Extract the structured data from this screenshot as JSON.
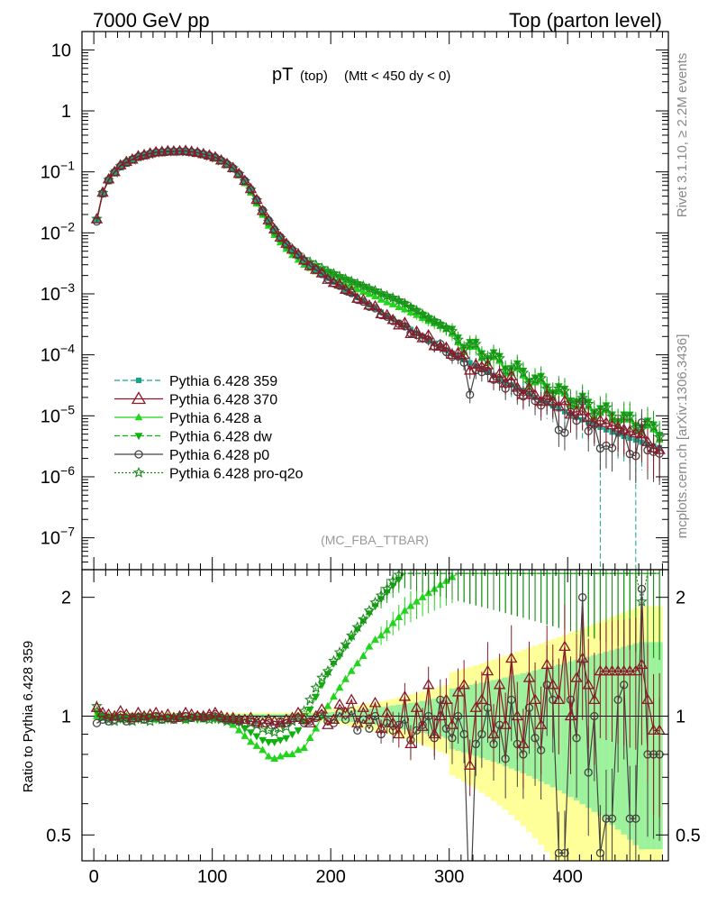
{
  "header": {
    "left": "7000 GeV pp",
    "right": "Top (parton level)"
  },
  "plot_title": {
    "main": "pT",
    "sub1": "(top)",
    "sub2": "(Mtt < 450 dy < 0)"
  },
  "side_labels": {
    "rivet": "Rivet 3.1.10, ≥ 2.2M events",
    "mcplots": "mcplots.cern.ch [arXiv:1306.3436]"
  },
  "analysis_tag": "(MC_FBA_TTBAR)",
  "ratio_ylabel": "Ratio to Pythia 6.428 359",
  "colors": {
    "p359": "#16a58a",
    "p370": "#8b1a2a",
    "pa": "#22d41c",
    "pdw": "#10b010",
    "pp0": "#444444",
    "ppro": "#1f8a1f",
    "band_yellow": "#ffff99",
    "band_green": "#9cf29c"
  },
  "chart_data": [
    {
      "type": "line",
      "panel": "main",
      "title": "pT (top) (Mtt < 450 dy < 0)",
      "yscale": "log",
      "xlim": [
        -10,
        485
      ],
      "ylim": [
        3e-08,
        20
      ],
      "y_ticks": [
        {
          "v": 10,
          "base": "10",
          "exp": ""
        },
        {
          "v": 1,
          "base": "1",
          "exp": ""
        },
        {
          "v": 0.1,
          "base": "10",
          "exp": "−1"
        },
        {
          "v": 0.01,
          "base": "10",
          "exp": "−2"
        },
        {
          "v": 0.001,
          "base": "10",
          "exp": "−3"
        },
        {
          "v": 0.0001,
          "base": "10",
          "exp": "−4"
        },
        {
          "v": 1e-05,
          "base": "10",
          "exp": "−5"
        },
        {
          "v": 1e-06,
          "base": "10",
          "exp": "−6"
        },
        {
          "v": 1e-07,
          "base": "10",
          "exp": "−7"
        }
      ],
      "legend_position": "lower-left",
      "series": [
        {
          "key": "p359",
          "name": "Pythia 6.428 359",
          "marker": "square",
          "dash": "6,3",
          "factor": 1.0
        },
        {
          "key": "p370",
          "name": "Pythia 6.428 370",
          "marker": "triangle-open",
          "dash": "",
          "factor": 1.0
        },
        {
          "key": "pa",
          "name": "Pythia 6.428 a",
          "marker": "triangle",
          "dash": "",
          "factor": 1.9
        },
        {
          "key": "pdw",
          "name": "Pythia 6.428 dw",
          "marker": "triangle-down",
          "dash": "6,3",
          "factor": 2.3
        },
        {
          "key": "pp0",
          "name": "Pythia 6.428 p0",
          "marker": "circle-open",
          "dash": "",
          "factor": 0.95
        },
        {
          "key": "ppro",
          "name": "Pythia 6.428 pro-q2o",
          "marker": "star",
          "dash": "2,2",
          "factor": 2.1
        }
      ],
      "reference": {
        "x": [
          2.5,
          7.5,
          12.5,
          17.5,
          22.5,
          27.5,
          32.5,
          37.5,
          42.5,
          47.5,
          52.5,
          57.5,
          62.5,
          67.5,
          72.5,
          77.5,
          82.5,
          87.5,
          92.5,
          97.5,
          102.5,
          107.5,
          112.5,
          117.5,
          122.5,
          127.5,
          132.5,
          137.5,
          142.5,
          147.5,
          152.5,
          157.5,
          162.5,
          167.5,
          172.5,
          177.5,
          182.5,
          187.5,
          192.5,
          197.5,
          202.5,
          207.5,
          212.5,
          217.5,
          222.5,
          227.5,
          232.5,
          237.5,
          242.5,
          247.5,
          252.5,
          257.5,
          262.5,
          267.5,
          272.5,
          277.5,
          282.5,
          287.5,
          292.5,
          297.5,
          302.5,
          307.5,
          312.5,
          317.5,
          322.5,
          327.5,
          332.5,
          337.5,
          342.5,
          347.5,
          352.5,
          357.5,
          362.5,
          367.5,
          372.5,
          377.5,
          382.5,
          387.5,
          392.5,
          397.5,
          402.5,
          407.5,
          412.5,
          417.5,
          422.5,
          427.5,
          432.5,
          437.5,
          442.5,
          447.5,
          452.5,
          457.5,
          462.5,
          467.5,
          472.5,
          477.5
        ],
        "y": [
          0.016,
          0.045,
          0.075,
          0.1,
          0.125,
          0.145,
          0.162,
          0.178,
          0.19,
          0.2,
          0.208,
          0.214,
          0.218,
          0.22,
          0.22,
          0.218,
          0.213,
          0.206,
          0.197,
          0.185,
          0.171,
          0.155,
          0.137,
          0.117,
          0.095,
          0.073,
          0.053,
          0.036,
          0.024,
          0.0165,
          0.0118,
          0.0088,
          0.0068,
          0.0054,
          0.0044,
          0.0036,
          0.003,
          0.0025,
          0.0021,
          0.0018,
          0.00155,
          0.00133,
          0.00115,
          0.001,
          0.00087,
          0.00076,
          0.00066,
          0.00058,
          0.0005,
          0.00044,
          0.00039,
          0.00034,
          0.0003,
          0.00026,
          0.00023,
          0.0002,
          0.000175,
          0.000155,
          0.000137,
          0.00012,
          0.000106,
          9.4e-05,
          8.3e-05,
          7.4e-05,
          6.6e-05,
          5.8e-05,
          5.2e-05,
          4.6e-05,
          4.1e-05,
          3.6e-05,
          3.2e-05,
          2.9e-05,
          2.6e-05,
          2.3e-05,
          2e-05,
          1.8e-05,
          1.6e-05,
          1.45e-05,
          1.3e-05,
          1.17e-05,
          1.05e-05,
          9.5e-06,
          8.6e-06,
          7.8e-06,
          7.1e-06,
          6.5e-06,
          5.9e-06,
          5.4e-06,
          5e-06,
          4.6e-06,
          4.3e-06,
          4e-06,
          3.7e-06,
          3.4e-06,
          3.2e-06,
          3e-06
        ]
      }
    },
    {
      "type": "line",
      "panel": "ratio",
      "ylabel": "Ratio to Pythia 6.428 359",
      "xlabel": "",
      "yscale": "log",
      "xlim": [
        -10,
        485
      ],
      "ylim": [
        0.43,
        2.35
      ],
      "x_ticks": [
        0,
        100,
        200,
        300,
        400
      ],
      "y_ticks": [
        0.5,
        1,
        2
      ],
      "series_ratio": {
        "p370": [
          1.05,
          1.02,
          1.01,
          1.0,
          1.03,
          1.01,
          0.99,
          1.02,
          1.0,
          1.01,
          1.02,
          1.0,
          1.01,
          0.99,
          1.0,
          1.02,
          1.01,
          1.0,
          1.0,
          1.01,
          1.02,
          1.0,
          0.99,
          0.99,
          0.98,
          0.98,
          0.99,
          0.97,
          0.96,
          0.98,
          0.97,
          0.96,
          0.98,
          0.99,
          1.02,
          0.98,
          0.96,
          1.0,
          1.04,
          0.95,
          0.98,
          1.07,
          1.02,
          1.1,
          0.96,
          1.05,
          0.98,
          1.08,
          0.93,
          1.02,
          0.96,
          0.9,
          1.12,
          0.85,
          1.05,
          0.94,
          1.2,
          0.9,
          1.0,
          1.1,
          0.95,
          1.15,
          1.2,
          0.75,
          1.05,
          1.1,
          1.3,
          0.9,
          1.2,
          0.95,
          1.4,
          1.0,
          0.85,
          1.25,
          1.1,
          0.95,
          1.35,
          1.2,
          1.1,
          1.5,
          1.0,
          1.25,
          1.4,
          1.2,
          1.1,
          1.3,
          1.3,
          1.3,
          1.3,
          1.3,
          1.3,
          1.3,
          1.35,
          1.1,
          0.92,
          0.92
        ],
        "pp0": [
          0.96,
          0.98,
          0.97,
          0.98,
          0.99,
          0.97,
          0.98,
          0.99,
          0.98,
          0.99,
          1.0,
          0.98,
          0.99,
          0.98,
          0.99,
          1.0,
          0.99,
          1.0,
          0.99,
          1.0,
          1.01,
          0.99,
          0.98,
          0.98,
          0.97,
          0.98,
          0.97,
          0.96,
          0.98,
          0.97,
          0.95,
          0.97,
          0.96,
          0.98,
          0.99,
          0.96,
          0.97,
          0.99,
          1.01,
          0.97,
          0.96,
          1.02,
          0.98,
          1.03,
          0.92,
          0.98,
          0.93,
          1.0,
          0.9,
          0.96,
          0.92,
          0.95,
          0.98,
          0.87,
          0.92,
          0.95,
          1.0,
          0.88,
          1.1,
          0.93,
          0.88,
          1.0,
          0.9,
          0.3,
          0.85,
          0.9,
          1.05,
          0.85,
          0.95,
          0.78,
          1.1,
          0.85,
          0.8,
          1.05,
          0.88,
          0.82,
          1.2,
          1.1,
          0.45,
          0.45,
          1.1,
          0.88,
          2.0,
          0.72,
          1.0,
          0.45,
          0.55,
          0.55,
          1.1,
          1.2,
          0.55,
          0.55,
          2.1,
          0.8,
          0.8,
          0.8
        ],
        "pa": [
          1.0,
          0.99,
          1.0,
          0.99,
          0.98,
          1.0,
          0.99,
          0.98,
          1.0,
          0.99,
          0.98,
          0.99,
          0.98,
          1.0,
          0.99,
          0.98,
          1.0,
          0.99,
          0.98,
          0.99,
          0.99,
          0.98,
          0.97,
          0.95,
          0.92,
          0.89,
          0.86,
          0.84,
          0.82,
          0.79,
          0.78,
          0.79,
          0.8,
          0.8,
          0.82,
          0.83,
          0.88,
          0.93,
          1.0,
          1.06,
          1.12,
          1.18,
          1.24,
          1.3,
          1.36,
          1.42,
          1.5,
          1.56,
          1.6,
          1.65,
          1.72,
          1.78,
          1.85,
          1.9,
          1.95,
          2.0,
          2.05,
          2.1,
          2.15,
          2.2,
          2.25,
          2.3,
          2.3,
          2.3,
          2.3,
          2.3,
          2.3,
          2.3,
          2.3,
          2.3,
          2.3,
          2.3,
          2.3,
          2.3,
          2.3,
          2.3,
          2.3,
          2.3,
          2.3,
          2.3,
          2.3,
          2.3,
          2.3,
          2.3,
          2.3,
          2.3,
          2.3,
          2.3,
          2.3,
          2.3,
          2.3,
          2.3,
          2.3,
          2.3,
          2.3,
          2.3
        ],
        "pdw": [
          1.02,
          1.0,
          0.99,
          1.0,
          0.98,
          0.99,
          1.0,
          0.98,
          0.99,
          1.0,
          0.98,
          0.99,
          0.98,
          0.99,
          1.0,
          0.98,
          0.99,
          0.98,
          1.0,
          0.99,
          0.98,
          0.99,
          0.98,
          0.97,
          0.96,
          0.93,
          0.91,
          0.89,
          0.87,
          0.86,
          0.86,
          0.87,
          0.88,
          0.9,
          0.92,
          0.97,
          1.04,
          1.12,
          1.2,
          1.28,
          1.36,
          1.42,
          1.5,
          1.58,
          1.66,
          1.74,
          1.82,
          1.9,
          1.98,
          2.06,
          2.14,
          2.22,
          2.3,
          2.3,
          2.3,
          2.3,
          2.3,
          2.3,
          2.3,
          2.3,
          2.3,
          2.3,
          2.3,
          2.3,
          2.3,
          2.3,
          2.3,
          2.3,
          2.3,
          2.3,
          2.3,
          2.3,
          2.3,
          2.3,
          2.3,
          2.3,
          2.3,
          2.3,
          2.3,
          2.3,
          2.3,
          2.3,
          2.3,
          2.3,
          2.3,
          2.3,
          2.3,
          2.3,
          2.3,
          2.3,
          2.3,
          2.3,
          2.3,
          2.3,
          2.3,
          2.3
        ],
        "ppro": [
          1.06,
          1.0,
          0.98,
          0.97,
          0.99,
          0.98,
          0.97,
          0.99,
          0.98,
          0.97,
          0.99,
          0.98,
          0.99,
          0.98,
          0.99,
          0.98,
          0.99,
          1.0,
          0.99,
          0.98,
          0.99,
          0.98,
          0.97,
          0.98,
          0.97,
          0.96,
          0.96,
          0.95,
          0.93,
          0.92,
          0.91,
          0.93,
          0.94,
          0.97,
          0.99,
          1.03,
          1.1,
          1.18,
          1.25,
          1.3,
          1.38,
          1.45,
          1.52,
          1.6,
          1.68,
          1.76,
          1.85,
          1.94,
          2.02,
          2.1,
          2.2,
          2.28,
          2.3,
          2.3,
          2.3,
          2.3,
          2.3,
          2.3,
          2.3,
          2.3,
          2.3,
          2.3,
          2.3,
          2.3,
          2.3,
          2.3,
          2.3,
          2.3,
          2.3,
          2.3,
          2.3,
          2.3,
          2.3,
          2.3,
          2.3,
          2.3,
          2.3,
          2.3,
          2.3,
          2.3,
          2.3,
          2.3,
          2.3,
          2.3,
          2.3,
          2.3,
          2.3,
          2.3,
          2.3,
          2.3,
          2.3,
          2.3,
          1.95,
          2.3,
          2.3,
          2.3
        ]
      }
    }
  ]
}
